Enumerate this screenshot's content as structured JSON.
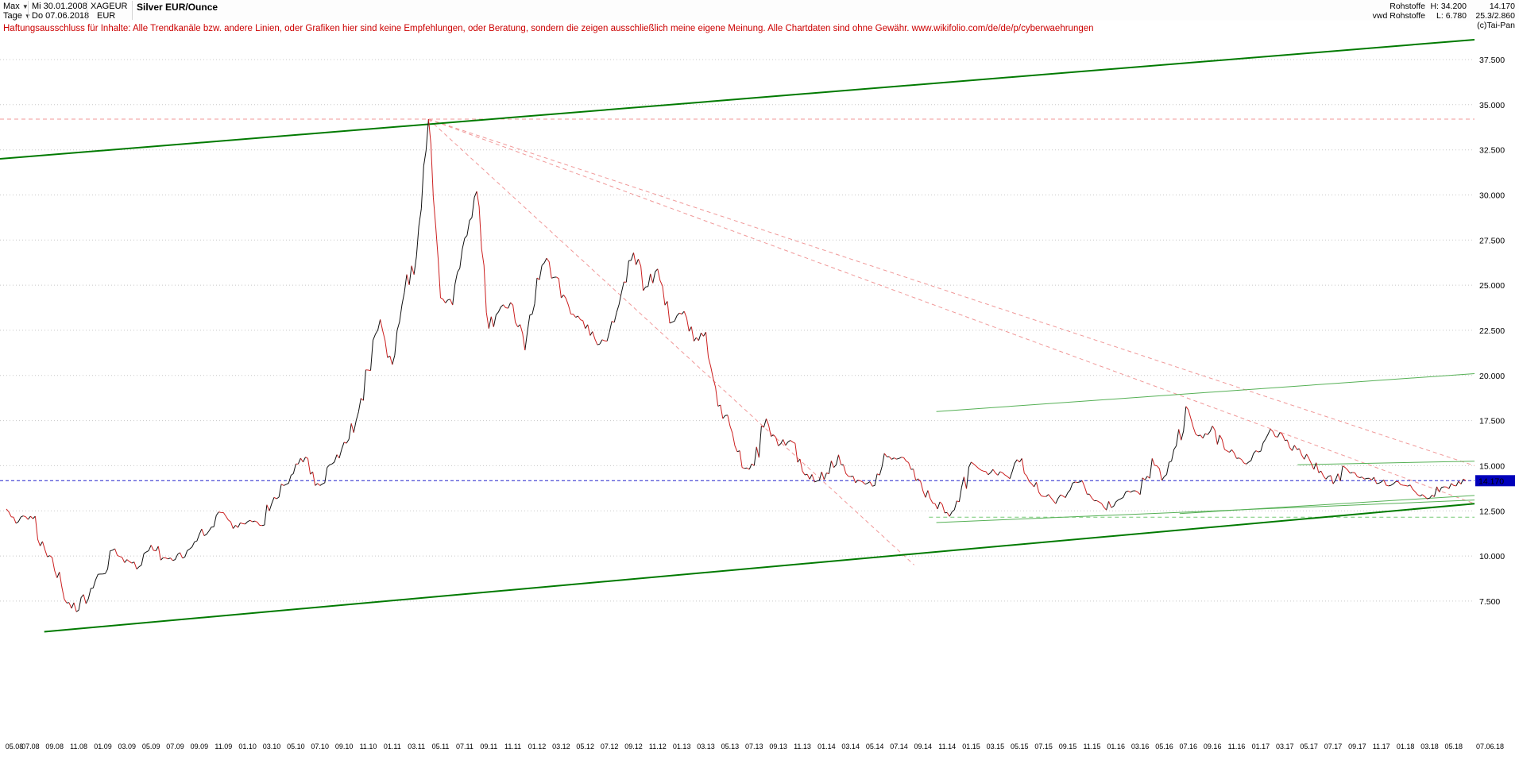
{
  "header": {
    "range_label": "Max",
    "range_start": "Mi 30.01.2008",
    "period_label": "Tage",
    "period_end": "Do 07.06.2018",
    "symbol": "XAGEUR",
    "currency": "EUR",
    "title": "Silver EUR/Ounce",
    "category": "Rohstoffe",
    "source": "vwd Rohstoffe",
    "high_label": "H: 34.200",
    "low_label": "L: 6.780",
    "last": "14.170",
    "change_info": "25.3/2.860",
    "copyright": "(c)Tai-Pan"
  },
  "disclaimer": "Haftungsausschluss für Inhalte: Alle Trendkanäle bzw. andere Linien, oder Grafiken hier sind keine Empfehlungen, oder Beratung, sondern die zeigen ausschließlich meine eigene Meinung. Alle Chartdaten sind ohne Gewähr.  www.wikifolio.com/de/de/p/cyberwaehrungen",
  "colors": {
    "up": "#111111",
    "down": "#cc2020",
    "green_dark": "#007a00",
    "green_light": "#55b055",
    "fan": "#f09898",
    "blue": "#2020cc",
    "grid": "#c8c8c8",
    "badge_bg": "#0000bb",
    "badge_text": "#ffffff"
  },
  "chart_data": {
    "type": "line",
    "title": "Silver EUR/Ounce",
    "interval": "monthly",
    "x_start": "2008-05",
    "x_end": "2018-06",
    "high": 34.2,
    "low": 6.78,
    "last_price": 14.17,
    "last_price_label": "14.170",
    "ylim": [
      0,
      38.6
    ],
    "grid": true,
    "values": [
      12.6,
      11.9,
      12.2,
      10.8,
      9.2,
      7.4,
      7.0,
      8.2,
      9.0,
      10.4,
      9.8,
      9.4,
      10.6,
      9.9,
      9.8,
      10.3,
      11.2,
      11.6,
      12.4,
      11.7,
      11.9,
      11.7,
      12.9,
      13.9,
      15.1,
      15.4,
      13.9,
      15.1,
      16.3,
      17.5,
      20.3,
      23.1,
      20.6,
      24.6,
      26.6,
      34.2,
      24.3,
      23.9,
      27.6,
      30.2,
      22.6,
      23.8,
      23.9,
      21.4,
      25.4,
      26.3,
      24.3,
      23.4,
      22.6,
      21.7,
      22.4,
      24.6,
      26.8,
      24.9,
      25.9,
      22.9,
      23.4,
      21.9,
      22.4,
      18.3,
      17.2,
      14.9,
      15.0,
      17.6,
      16.1,
      16.4,
      14.7,
      14.1,
      14.6,
      15.6,
      14.4,
      14.1,
      13.9,
      15.5,
      15.4,
      14.8,
      13.6,
      12.9,
      12.4,
      13.0,
      15.2,
      14.7,
      14.6,
      14.4,
      15.2,
      14.0,
      13.3,
      12.9,
      13.5,
      14.1,
      13.2,
      12.7,
      13.0,
      13.6,
      13.4,
      15.4,
      14.4,
      16.1,
      18.1,
      16.7,
      17.2,
      15.9,
      15.4,
      15.2,
      15.8,
      16.9,
      16.4,
      15.9,
      15.4,
      14.7,
      14.0,
      14.9,
      14.4,
      14.3,
      14.1,
      14.0,
      13.9,
      13.4,
      13.2,
      13.8,
      13.9,
      14.17
    ],
    "y_ticks": [
      37.5,
      35,
      32.5,
      30,
      27.5,
      25,
      22.5,
      20,
      17.5,
      15,
      12.5,
      10,
      7.5
    ],
    "y_tick_labels": [
      "37.500",
      "35.000",
      "32.500",
      "30.000",
      "27.500",
      "25.000",
      "22.500",
      "20.000",
      "17.500",
      "15.000",
      "12.500",
      "10.000",
      "7.500"
    ],
    "x_tick_labels": [
      "05.08",
      "07.08",
      "09.08",
      "11.08",
      "01.09",
      "03.09",
      "05.09",
      "07.09",
      "09.09",
      "11.09",
      "01.10",
      "03.10",
      "05.10",
      "07.10",
      "09.10",
      "11.10",
      "01.11",
      "03.11",
      "05.11",
      "07.11",
      "09.11",
      "11.11",
      "01.12",
      "03.12",
      "05.12",
      "07.12",
      "09.12",
      "11.12",
      "01.13",
      "03.13",
      "05.13",
      "07.13",
      "09.13",
      "11.13",
      "01.14",
      "03.14",
      "05.14",
      "07.14",
      "09.14",
      "11.14",
      "01.15",
      "03.15",
      "05.15",
      "07.15",
      "09.15",
      "11.15",
      "01.16",
      "03.16",
      "05.16",
      "07.16",
      "09.16",
      "11.16",
      "01.17",
      "03.17",
      "05.17",
      "07.17",
      "09.17",
      "11.17",
      "01.18",
      "03.18",
      "05.18"
    ],
    "last_date_label": "07.06.18",
    "h_lines": [
      {
        "v": 34.2,
        "x1": 0,
        "x2": 1,
        "color": "#f09898",
        "dash": "5 4"
      },
      {
        "v": 14.17,
        "x1": 0,
        "x2": 1,
        "color": "#2020cc",
        "dash": "4 3"
      },
      {
        "v": 12.15,
        "x1": 0.63,
        "x2": 1,
        "color": "#77cc77",
        "dash": "5 4"
      }
    ],
    "trend_lines": [
      {
        "x1": 0.0,
        "v1": 32.0,
        "x2": 1.0,
        "v2": 38.6,
        "color": "green_dark",
        "width": 2
      },
      {
        "x1": 0.03,
        "v1": 5.8,
        "x2": 1.0,
        "v2": 12.9,
        "color": "green_dark",
        "width": 2
      },
      {
        "x1": 0.635,
        "v1": 18.0,
        "x2": 1.0,
        "v2": 20.1,
        "color": "green_light",
        "width": 1
      },
      {
        "x1": 0.635,
        "v1": 11.85,
        "x2": 1.0,
        "v2": 13.1,
        "color": "green_light",
        "width": 1
      },
      {
        "x1": 0.8,
        "v1": 12.35,
        "x2": 1.0,
        "v2": 13.35,
        "color": "green_light",
        "width": 1
      },
      {
        "x1": 0.88,
        "v1": 15.05,
        "x2": 1.0,
        "v2": 15.25,
        "color": "green_light",
        "width": 1
      }
    ],
    "fan_origin": {
      "index": 35,
      "value": 34.2
    },
    "fan_lines": [
      {
        "xf": 1.0,
        "v": 15.0
      },
      {
        "xf": 1.0,
        "v": 12.9
      },
      {
        "xf": 0.62,
        "v": 9.5
      }
    ]
  }
}
